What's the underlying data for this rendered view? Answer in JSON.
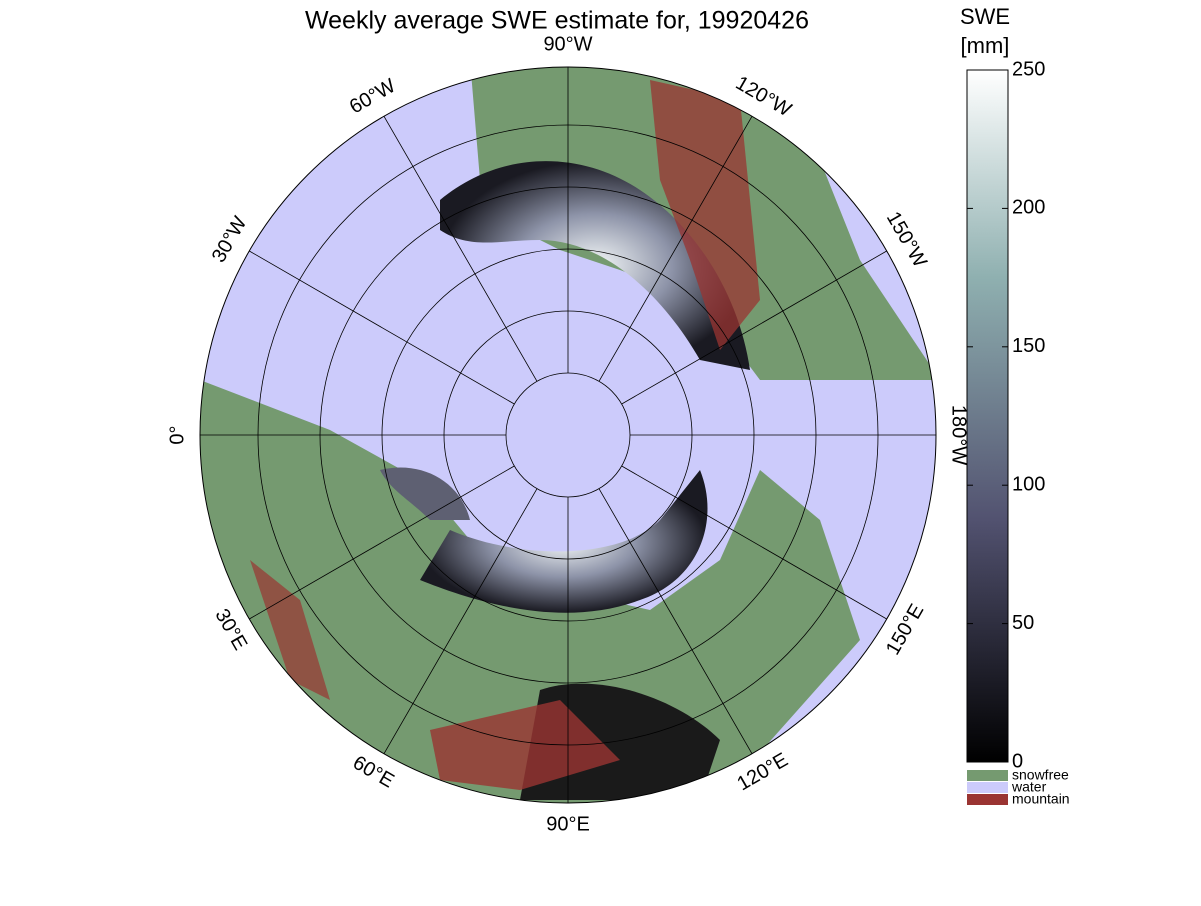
{
  "title": "Weekly average SWE estimate for, 19920426",
  "longitude_labels": [
    "90°W",
    "120°W",
    "150°W",
    "180°W",
    "150°E",
    "120°E",
    "90°E",
    "60°E",
    "30°E",
    "0°",
    "30°W",
    "60°W"
  ],
  "colorbar": {
    "label": [
      "SWE",
      "[mm]"
    ],
    "lim": [
      0,
      250
    ],
    "ticks": [
      0,
      50,
      100,
      150,
      200,
      250
    ]
  },
  "legend": [
    {
      "name": "snowfree",
      "color": "#759a70"
    },
    {
      "name": "water",
      "color": "#cccbfb"
    },
    {
      "name": "mountain",
      "color": "#9a3432"
    }
  ]
}
